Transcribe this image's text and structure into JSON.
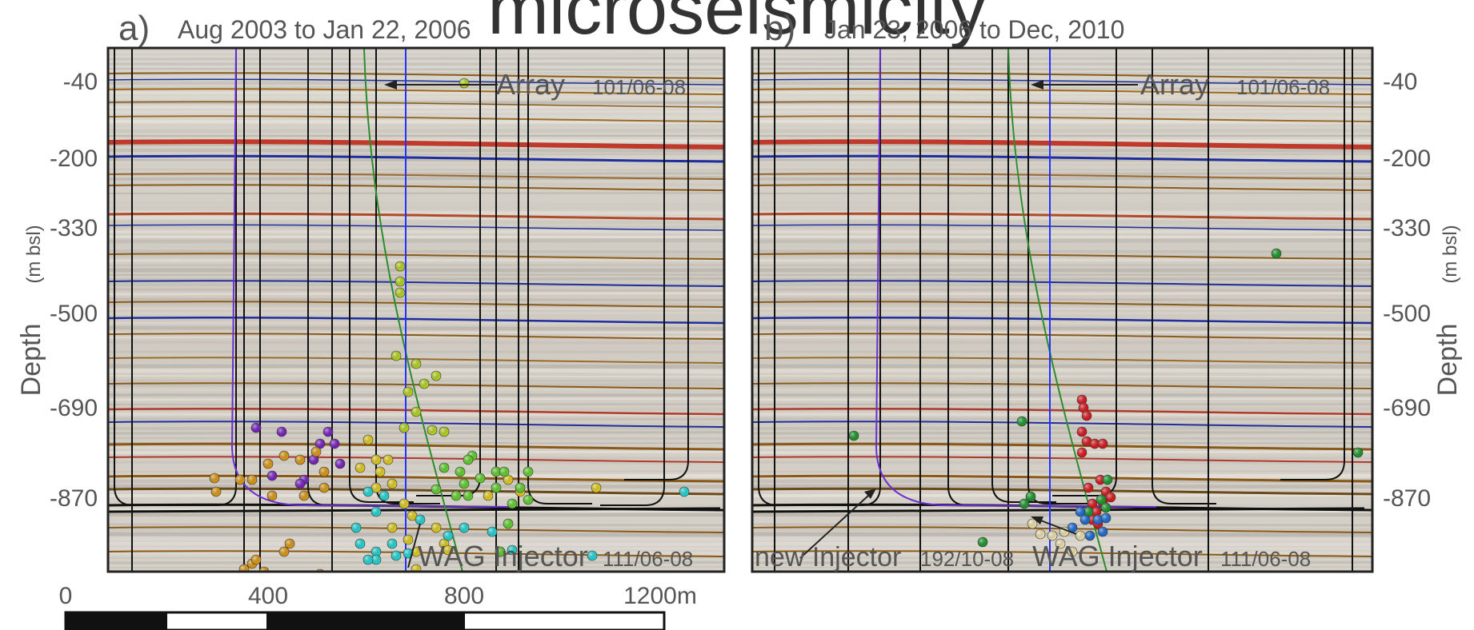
{
  "slide_title": "microseismicity",
  "panels": [
    {
      "letter": "a)",
      "date_range": "Aug 2003 to Jan 22, 2006",
      "array_label": "Array",
      "array_id": "101/06-08",
      "injector_labels": [
        {
          "name": "WAG Injector",
          "id": "111/06-08"
        }
      ]
    },
    {
      "letter": "b)",
      "date_range": "Jan 23, 2006 to Dec, 2010",
      "array_label": "Array",
      "array_id": "101/06-08",
      "injector_labels": [
        {
          "name": "new Injector",
          "id": "192/10-08"
        },
        {
          "name": "WAG Injector",
          "id": "111/06-08"
        }
      ]
    }
  ],
  "y_axis": {
    "label": "Depth",
    "unit": "(m bsl)",
    "ticks": [
      "-40",
      "-200",
      "-330",
      "-500",
      "-690",
      "-870"
    ]
  },
  "scale_bar": {
    "ticks": [
      "0",
      "400",
      "800",
      "1200m"
    ],
    "segments": [
      "black",
      "white",
      "black",
      "white"
    ]
  },
  "colors": {
    "frame": "#222222",
    "red_horizon": "#c0392b",
    "blue_horizon": "#1f2e9e",
    "brown_horizon": "#8a5a1a",
    "well_black": "#111111",
    "well_purple": "#6a2fd0",
    "well_green": "#2e8b2e",
    "well_blue": "#2233ff"
  },
  "event_colors": {
    "purple": "#7a1fc4",
    "orange": "#e09a12",
    "yellow": "#e6cf1a",
    "yellowgreen": "#b6d81a",
    "green": "#5fd32a",
    "cyan": "#1ed8d8",
    "darkgreen": "#199a2a",
    "red": "#e0141a",
    "blue": "#1a6cd8",
    "cream": "#f2e6b0"
  }
}
